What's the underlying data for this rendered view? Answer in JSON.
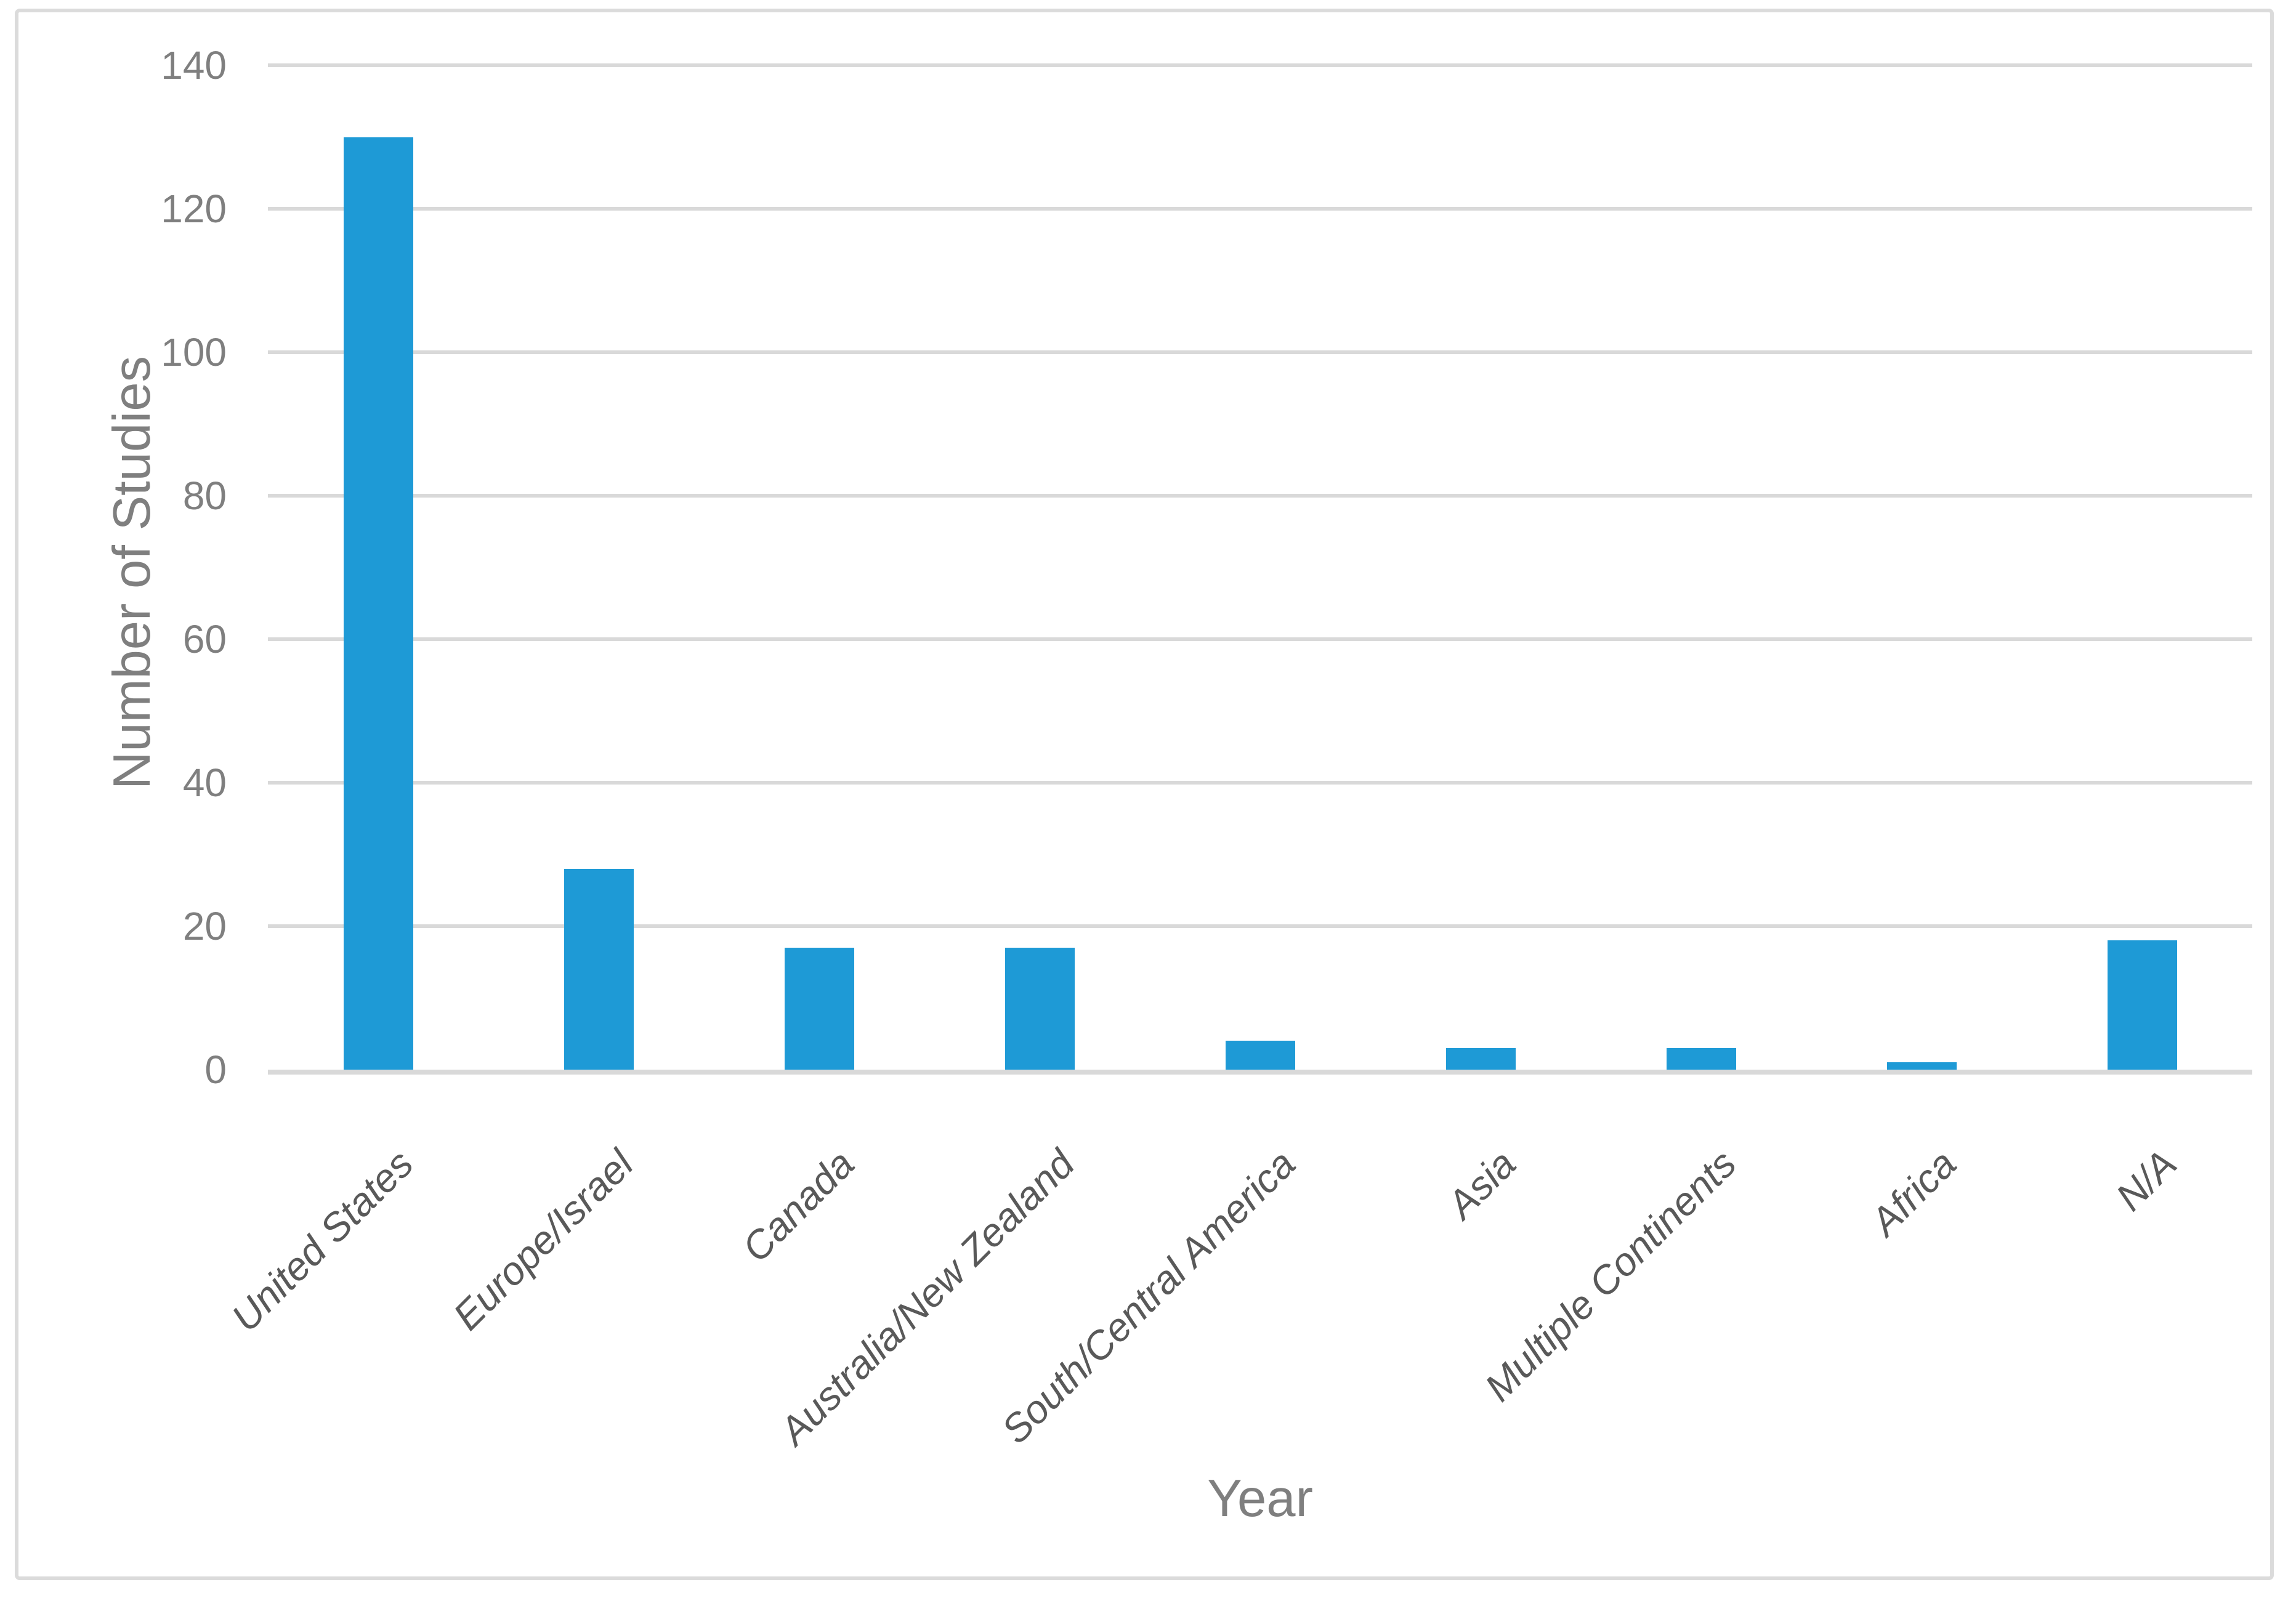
{
  "chart_data": {
    "type": "bar",
    "categories": [
      "United States",
      "Europe/Israel",
      "Canada",
      "Australia/New Zealand",
      "South/Central America",
      "Asia",
      "Multiple Continents",
      "Africa",
      "N/A"
    ],
    "values": [
      130,
      28,
      17,
      17,
      4,
      3,
      3,
      1,
      18
    ],
    "title": "",
    "xlabel": "Year",
    "ylabel": "Number of Studies",
    "ylim": [
      0,
      140
    ],
    "yticks": [
      0,
      20,
      40,
      60,
      80,
      100,
      120,
      140
    ],
    "grid": true,
    "legend": "none",
    "colors": {
      "bar": "#1E9AD6",
      "gridline": "#D9D9D9",
      "axis_line": "#D9D9D9",
      "tick_label": "#7F7F7F",
      "category_label": "#595959",
      "axis_title": "#7F7F7F",
      "figure_border": "#DBDBDB",
      "background": "#FFFFFF"
    }
  }
}
